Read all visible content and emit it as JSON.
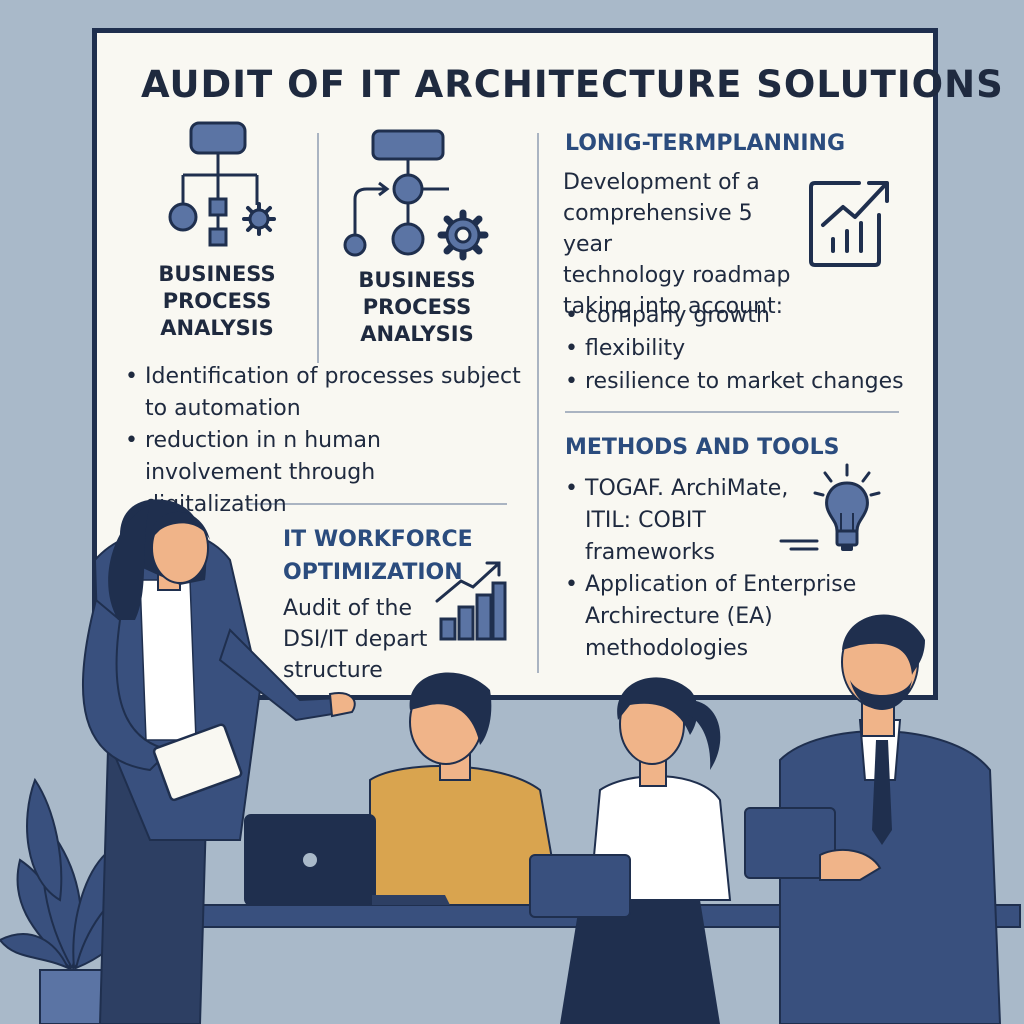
{
  "title": "AUDIT OF IT ARCHITECTURE SOLUTIONS",
  "process_left": {
    "heading_lines": [
      "BUSINESS",
      "PROCESS",
      "ANALYSIS"
    ]
  },
  "process_right": {
    "heading_lines": [
      "BUSINESS",
      "PROCESS",
      "ANALYSIS"
    ]
  },
  "process_bullets": [
    "Identification of processes subject to automation",
    "reduction in n human involvement through digitalization"
  ],
  "long_term": {
    "title": "LONIG-TERMPLANNING",
    "desc_lines": [
      "Development of a",
      "comprehensive 5 year",
      "technology roadmap",
      "taking into account:"
    ],
    "bullets": [
      "company growth",
      "flexibility",
      "resilience to market changes"
    ]
  },
  "methods": {
    "title": "METHODS AND TOOLS",
    "bullets": [
      [
        "TOGAF. ArchiMate,",
        "ITIL: COBIT",
        "frameworks"
      ],
      [
        "Application of Enterprise",
        "Archirecture (EA)",
        "methodologies"
      ]
    ]
  },
  "workforce": {
    "title_lines": [
      "IT WORKFORCE",
      "OPTIMIZATION"
    ],
    "desc_lines": [
      "Audit of the",
      "DSI/IT depart",
      "structure"
    ]
  },
  "colors": {
    "navy": "#1f2f4e",
    "accent_blue": "#5b74a4",
    "background": "#a9b9c9",
    "board": "#f9f8f2",
    "sweater": "#d9a44f"
  },
  "icons": [
    "flowchart-icon",
    "gear-icon",
    "growth-chart-icon",
    "lightbulb-icon",
    "bar-chart-icon",
    "tablet-icon",
    "laptop-icon",
    "plant-icon"
  ]
}
